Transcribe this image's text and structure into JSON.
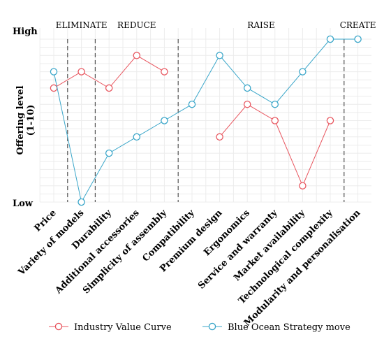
{
  "chart_data": {
    "type": "line",
    "ylabel": "Offering level\n(1-10)",
    "ylim": [
      0,
      10
    ],
    "y_ticks": [
      {
        "value": 0,
        "label": "Low"
      },
      {
        "value": 10,
        "label": "High"
      }
    ],
    "grid": true,
    "legend_position": "bottom",
    "categories": [
      "Price",
      "Variety of models",
      "Durability",
      "Additional accessories",
      "Simplicity of assembly",
      "Compatibility",
      "Premium design",
      "Ergonomics",
      "Service and warranty",
      "Market availability",
      "Technological complexity",
      "Modularity and personalisation"
    ],
    "sections": [
      {
        "label": "ELIMINATE",
        "from": 0.5,
        "to": 1.5
      },
      {
        "label": "REDUCE",
        "from": 1.5,
        "to": 4.5
      },
      {
        "label": "RAISE",
        "from": 4.5,
        "to": 10.5
      },
      {
        "label": "CREATE",
        "from": 10.5,
        "to": 11.5
      }
    ],
    "dividers": [
      0.5,
      1.5,
      4.5,
      10.5
    ],
    "series": [
      {
        "name": "Industry Value Curve",
        "color": "#e8565f",
        "values": [
          7,
          8,
          7,
          9,
          8,
          null,
          4,
          6,
          5,
          1,
          5,
          null
        ]
      },
      {
        "name": "Blue Ocean Strategy move",
        "color": "#3aa6c9",
        "values": [
          8,
          0,
          3,
          4,
          5,
          6,
          9,
          7,
          6,
          8,
          10,
          10
        ]
      }
    ]
  }
}
